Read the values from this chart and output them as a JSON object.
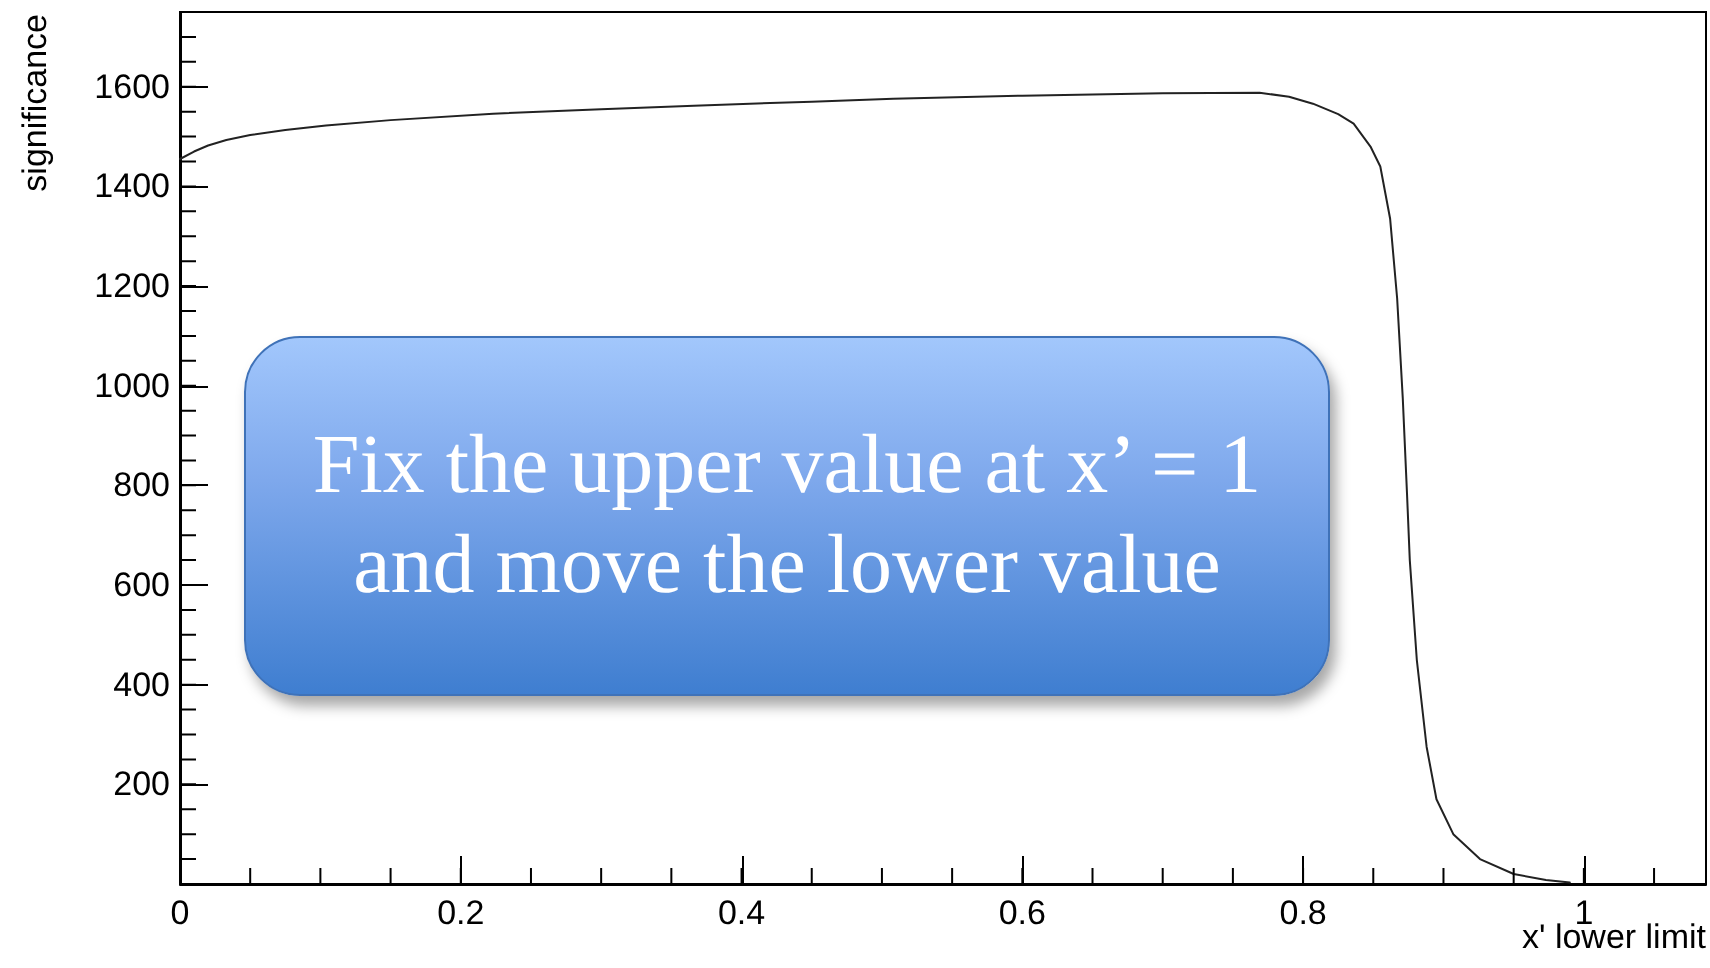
{
  "chart_data": {
    "type": "line",
    "xlabel": "x' lower limit",
    "ylabel": "significance",
    "annotations": [
      "Fix the upper value at x’ = 1 and move the lower value"
    ],
    "x": [
      0,
      0.01,
      0.02,
      0.033,
      0.05,
      0.075,
      0.104,
      0.15,
      0.223,
      0.3,
      0.366,
      0.45,
      0.508,
      0.6,
      0.7,
      0.769,
      0.79,
      0.807,
      0.825,
      0.836,
      0.848,
      0.855,
      0.862,
      0.867,
      0.871,
      0.874,
      0.876,
      0.881,
      0.888,
      0.895,
      0.907,
      0.926,
      0.95,
      0.973,
      0.99
    ],
    "values": [
      1455,
      1470,
      1482,
      1493,
      1503,
      1513,
      1522,
      1533,
      1546,
      1555,
      1562,
      1570,
      1576,
      1582,
      1587,
      1588,
      1580,
      1566,
      1545,
      1526,
      1480,
      1440,
      1335,
      1175,
      975,
      785,
      650,
      450,
      275,
      170,
      100,
      50,
      20,
      8,
      3
    ],
    "color": "#222222",
    "marker": "none",
    "line_style": "solid",
    "xlim": [
      0,
      1.087
    ],
    "ylim": [
      0,
      1750
    ],
    "xticks": [
      0,
      0.2,
      0.4,
      0.6,
      0.8,
      1
    ],
    "yticks": [
      200,
      400,
      600,
      800,
      1000,
      1200,
      1400,
      1600
    ]
  }
}
